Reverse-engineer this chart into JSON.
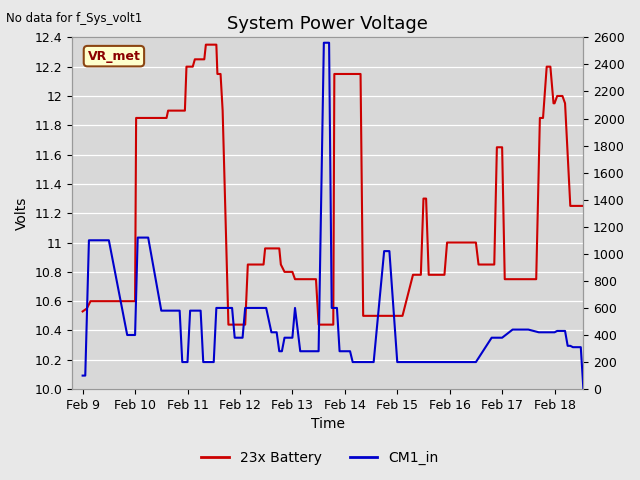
{
  "title": "System Power Voltage",
  "top_left_text": "No data for f_Sys_volt1",
  "ylabel_left": "Volts",
  "xlabel": "Time",
  "ylim_left": [
    10.0,
    12.4
  ],
  "ylim_right": [
    0,
    2600
  ],
  "yticks_left": [
    10.0,
    10.2,
    10.4,
    10.6,
    10.8,
    11.0,
    11.2,
    11.4,
    11.6,
    11.8,
    12.0,
    12.2,
    12.4
  ],
  "yticks_right": [
    0,
    200,
    400,
    600,
    800,
    1000,
    1200,
    1400,
    1600,
    1800,
    2000,
    2200,
    2400,
    2600
  ],
  "xtick_labels": [
    "Feb 9",
    "Feb 10",
    "Feb 11",
    "Feb 12",
    "Feb 13",
    "Feb 14",
    "Feb 15",
    "Feb 16",
    "Feb 17",
    "Feb 18"
  ],
  "xlim": [
    -0.2,
    9.55
  ],
  "vr_met_label": "VR_met",
  "bg_color": "#e8e8e8",
  "plot_bg_color": "#d8d8d8",
  "grid_color": "white",
  "red_color": "#cc0000",
  "blue_color": "#0000cc",
  "legend_labels": [
    "23x Battery",
    "CM1_in"
  ],
  "red_x": [
    0.0,
    0.08,
    0.15,
    1.0,
    1.02,
    1.6,
    1.63,
    1.95,
    1.98,
    2.1,
    2.14,
    2.32,
    2.35,
    2.55,
    2.57,
    2.63,
    2.67,
    2.78,
    2.82,
    3.1,
    3.15,
    3.45,
    3.48,
    3.75,
    3.78,
    3.85,
    3.9,
    4.0,
    4.05,
    4.2,
    4.25,
    4.45,
    4.5,
    4.6,
    4.65,
    4.78,
    4.8,
    4.9,
    4.95,
    5.3,
    5.35,
    5.55,
    5.6,
    5.9,
    5.95,
    6.05,
    6.1,
    6.3,
    6.35,
    6.45,
    6.5,
    6.55,
    6.6,
    6.9,
    6.95,
    7.5,
    7.55,
    7.75,
    7.8,
    7.85,
    7.9,
    8.0,
    8.05,
    8.15,
    8.6,
    8.65,
    8.72,
    8.78,
    8.85,
    8.92,
    8.98,
    9.0,
    9.05,
    9.15,
    9.2,
    9.3,
    9.35,
    9.55
  ],
  "red_y": [
    10.53,
    10.55,
    10.6,
    10.6,
    11.85,
    11.85,
    11.9,
    11.9,
    12.2,
    12.2,
    12.25,
    12.25,
    12.35,
    12.35,
    12.15,
    12.15,
    11.9,
    10.44,
    10.44,
    10.44,
    10.85,
    10.85,
    10.96,
    10.96,
    10.85,
    10.8,
    10.8,
    10.8,
    10.75,
    10.75,
    10.75,
    10.75,
    10.44,
    10.44,
    10.44,
    10.44,
    12.15,
    12.15,
    12.15,
    12.15,
    10.5,
    10.5,
    10.5,
    10.5,
    10.5,
    10.5,
    10.5,
    10.78,
    10.78,
    10.78,
    11.3,
    11.3,
    10.78,
    10.78,
    11.0,
    11.0,
    10.85,
    10.85,
    10.85,
    10.85,
    11.65,
    11.65,
    10.75,
    10.75,
    10.75,
    10.75,
    11.85,
    11.85,
    12.2,
    12.2,
    11.95,
    11.95,
    12.0,
    12.0,
    11.95,
    11.25,
    11.25,
    11.25
  ],
  "blue_x": [
    0.0,
    0.05,
    0.12,
    0.5,
    0.85,
    0.9,
    1.0,
    1.05,
    1.25,
    1.5,
    1.85,
    1.9,
    2.0,
    2.05,
    2.25,
    2.3,
    2.5,
    2.55,
    2.85,
    2.9,
    3.05,
    3.1,
    3.5,
    3.6,
    3.7,
    3.75,
    3.8,
    3.85,
    4.0,
    4.05,
    4.15,
    4.2,
    4.5,
    4.6,
    4.7,
    4.75,
    4.85,
    4.9,
    5.0,
    5.05,
    5.1,
    5.15,
    5.55,
    5.75,
    5.85,
    6.0,
    6.05,
    6.35,
    6.5,
    7.0,
    7.5,
    7.8,
    8.0,
    8.2,
    8.5,
    8.7,
    8.75,
    8.8,
    9.0,
    9.05,
    9.1,
    9.15,
    9.2,
    9.25,
    9.3,
    9.35,
    9.4,
    9.45,
    9.5,
    9.55
  ],
  "blue_y": [
    100,
    100,
    1100,
    1100,
    400,
    400,
    400,
    1120,
    1120,
    580,
    580,
    200,
    200,
    580,
    580,
    200,
    200,
    600,
    600,
    380,
    380,
    600,
    600,
    420,
    420,
    280,
    280,
    380,
    380,
    600,
    280,
    280,
    280,
    2560,
    2560,
    600,
    600,
    280,
    280,
    280,
    280,
    200,
    200,
    1020,
    1020,
    200,
    200,
    200,
    200,
    200,
    200,
    380,
    380,
    440,
    440,
    420,
    420,
    420,
    420,
    430,
    430,
    430,
    430,
    320,
    320,
    310,
    310,
    310,
    310,
    0
  ]
}
